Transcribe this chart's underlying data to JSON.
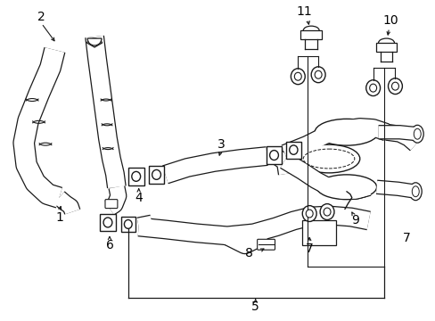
{
  "bg_color": "#ffffff",
  "line_color": "#1a1a1a",
  "label_color": "#000000",
  "fontsize": 10,
  "lw_pipe": 1.0,
  "lw_thin": 0.8,
  "gray": "#888888"
}
